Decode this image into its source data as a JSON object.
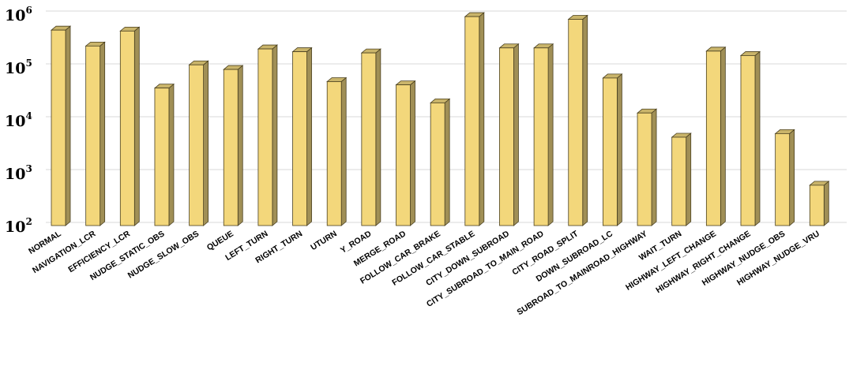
{
  "chart_data": {
    "type": "bar",
    "title": "",
    "xlabel": "",
    "ylabel": "",
    "yscale": "log",
    "ylim": [
      100,
      1000000
    ],
    "grid": true,
    "legend": "none",
    "bar_style": "3d",
    "colors": {
      "bar_front": "#f3d77b",
      "bar_side": "#a08f56",
      "bar_top": "#c9b46a",
      "bar_outline": "#4a4020",
      "grid": "#d9d9d9"
    },
    "yticks": [
      {
        "value": 100,
        "base": "10",
        "exp": "2"
      },
      {
        "value": 1000,
        "base": "10",
        "exp": "3"
      },
      {
        "value": 10000,
        "base": "10",
        "exp": "4"
      },
      {
        "value": 100000,
        "base": "10",
        "exp": "5"
      },
      {
        "value": 1000000,
        "base": "10",
        "exp": "6"
      }
    ],
    "categories": [
      "NORMAL",
      "NAVIGATION_LCR",
      "EFFICIENCY_LCR",
      "NUDGE_STATIC_OBS",
      "NUDGE_SLOW_OBS",
      "QUEUE",
      "LEFT_TURN",
      "RIGHT_TURN",
      "UTURN",
      "Y_ROAD",
      "MERGE_ROAD",
      "FOLLOW_CAR_BRAKE",
      "FOLLOW_CAR_STABLE",
      "CITY_DOWN_SUBROAD",
      "CITY_SUBROAD_TO_MAIN_ROAD",
      "CITY_ROAD_SPLIT",
      "DOWN_SUBROAD_LC",
      "SUBROAD_TO_MAINROAD_HIGHWAY",
      "WAIT_TURN",
      "HIGHWAY_LEFT_CHANGE",
      "HIGHWAY_RIGHT_CHANGE",
      "HIGHWAY_NUDGE_OBS",
      "HIGHWAY_NUDGE_VRU"
    ],
    "values": [
      500000,
      250000,
      480000,
      40000,
      110000,
      90000,
      220000,
      195000,
      53000,
      185000,
      46000,
      21000,
      900000,
      230000,
      230000,
      800000,
      62000,
      13500,
      4700,
      200000,
      165000,
      5500,
      580
    ]
  }
}
